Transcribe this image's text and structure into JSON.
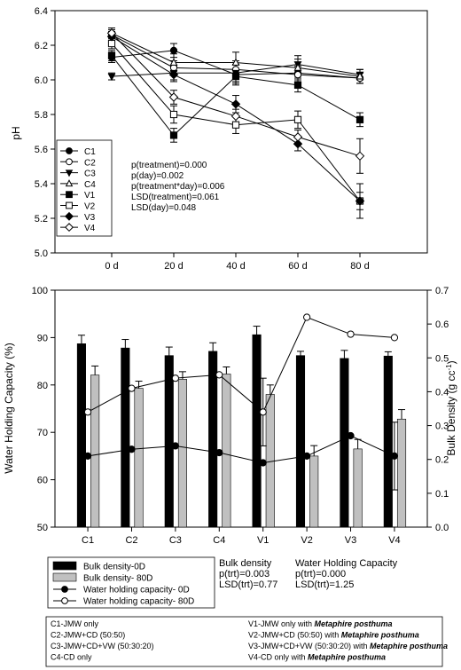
{
  "figure": {
    "chart_data": [
      {
        "type": "line",
        "ylabel": "pH",
        "xlabel": "",
        "x": [
          "0 d",
          "20 d",
          "40 d",
          "60 d",
          "80 d"
        ],
        "ylim": [
          5.0,
          6.4
        ],
        "yticks": [
          "5.0",
          "5.2",
          "5.4",
          "5.6",
          "5.8",
          "6.0",
          "6.2",
          "6.4"
        ],
        "series": [
          {
            "name": "C1",
            "marker": "circle-filled",
            "values": [
              6.13,
              6.17,
              6.03,
              6.04,
              6.01
            ],
            "err": [
              0.03,
              0.04,
              0.06,
              0.04,
              0.03
            ]
          },
          {
            "name": "C2",
            "marker": "circle-open",
            "values": [
              6.26,
              6.07,
              6.06,
              6.03,
              6.01
            ],
            "err": [
              0.03,
              0.04,
              0.05,
              0.04,
              0.03
            ]
          },
          {
            "name": "C3",
            "marker": "triangle-down-filled",
            "values": [
              6.02,
              6.04,
              6.04,
              6.09,
              6.03
            ],
            "err": [
              0.02,
              0.04,
              0.05,
              0.05,
              0.03
            ]
          },
          {
            "name": "C4",
            "marker": "triangle-up-open",
            "values": [
              6.27,
              6.1,
              6.1,
              6.07,
              6.02
            ],
            "err": [
              0.03,
              0.05,
              0.06,
              0.05,
              0.04
            ]
          },
          {
            "name": "V1",
            "marker": "square-filled",
            "values": [
              6.14,
              5.68,
              6.02,
              5.97,
              5.77
            ],
            "err": [
              0.03,
              0.04,
              0.04,
              0.04,
              0.04
            ]
          },
          {
            "name": "V2",
            "marker": "square-open",
            "values": [
              6.21,
              5.8,
              5.74,
              5.77,
              5.3
            ],
            "err": [
              0.03,
              0.05,
              0.05,
              0.05,
              0.05
            ]
          },
          {
            "name": "V3",
            "marker": "diamond-filled",
            "values": [
              6.25,
              6.03,
              5.86,
              5.63,
              5.3
            ],
            "err": [
              0.03,
              0.04,
              0.05,
              0.04,
              0.1
            ]
          },
          {
            "name": "V4",
            "marker": "diamond-open",
            "values": [
              6.27,
              5.9,
              5.79,
              5.67,
              5.56
            ],
            "err": [
              0.03,
              0.04,
              0.04,
              0.04,
              0.1
            ]
          }
        ],
        "stats": [
          "p(treatment)=0.000",
          "p(day)=0.002",
          "p(treatment*day)=0.006",
          "LSD(treatment)=0.061",
          "LSD(day)=0.048"
        ]
      },
      {
        "type": "bar",
        "categories": [
          "C1",
          "C2",
          "C3",
          "C4",
          "V1",
          "V2",
          "V3",
          "V4"
        ],
        "ylabel": "Water Holding Capacity (%)",
        "ylim": [
          50,
          100
        ],
        "yticks": [
          "50",
          "60",
          "70",
          "80",
          "90",
          "100"
        ],
        "y2label_main": "Bulk Density (g cc",
        "y2label_sup": "-1",
        "y2label_end": ")",
        "y2lim": [
          0.0,
          0.7
        ],
        "y2ticks": [
          "0.0",
          "0.1",
          "0.2",
          "0.3",
          "0.4",
          "0.5",
          "0.6",
          "0.7"
        ],
        "bars": [
          {
            "name": "Bulk density-0D",
            "color": "#000000",
            "values": [
              88.7,
              87.8,
              86.2,
              87.1,
              90.6,
              86.2,
              85.6,
              86.1
            ],
            "err": [
              1.8,
              1.8,
              1.8,
              1.8,
              1.8,
              0.9,
              1.7,
              0.9
            ]
          },
          {
            "name": "Bulk density- 80D",
            "color": "#c0c0c0",
            "values": [
              82.1,
              79.3,
              81.2,
              82.3,
              78.0,
              65.0,
              66.5,
              72.8
            ],
            "err": [
              1.9,
              1.5,
              1.6,
              1.5,
              2.0,
              2.2,
              2.0,
              2.0
            ]
          }
        ],
        "lines": [
          {
            "name": "Water holding capacity- 0D",
            "marker": "circle-filled",
            "values": [
              0.21,
              0.23,
              0.24,
              0.22,
              0.19,
              0.21,
              0.27,
              0.21
            ],
            "err": [
              0,
              0,
              0,
              0,
              0,
              0,
              0,
              0.1
            ]
          },
          {
            "name": "Water holding capacity- 80D",
            "marker": "circle-open",
            "values": [
              0.34,
              0.41,
              0.44,
              0.45,
              0.34,
              0.62,
              0.57,
              0.56
            ],
            "err": [
              0,
              0,
              0,
              0,
              0.1,
              0,
              0,
              0
            ]
          }
        ],
        "stats": {
          "bd_title": "Bulk density",
          "bd_p": "p(trt)=0.003",
          "bd_lsd": "LSD(trt)=0.77",
          "whc_title": "Water Holding Capacity",
          "whc_p": "p(trt)=0.000",
          "whc_lsd": "LSD(trt)=1.25"
        }
      }
    ],
    "treatments": [
      {
        "plain": "C1-JMW only",
        "italic": ""
      },
      {
        "plain": "V1-JMW only with ",
        "italic": "Metaphire posthuma"
      },
      {
        "plain": "C2-JMW+CD (50:50)",
        "italic": ""
      },
      {
        "plain": "V2-JMW+CD (50:50) with ",
        "italic": "Metaphire posthuma"
      },
      {
        "plain": "C3-JMW+CD+VW  (50:30:20)",
        "italic": ""
      },
      {
        "plain": "V3-JMW+CD+VW (50:30:20) with ",
        "italic": "Metaphire posthuma"
      },
      {
        "plain": "C4-CD only",
        "italic": ""
      },
      {
        "plain": "V4-CD only with ",
        "italic": "Metaphire posthuma"
      }
    ]
  }
}
